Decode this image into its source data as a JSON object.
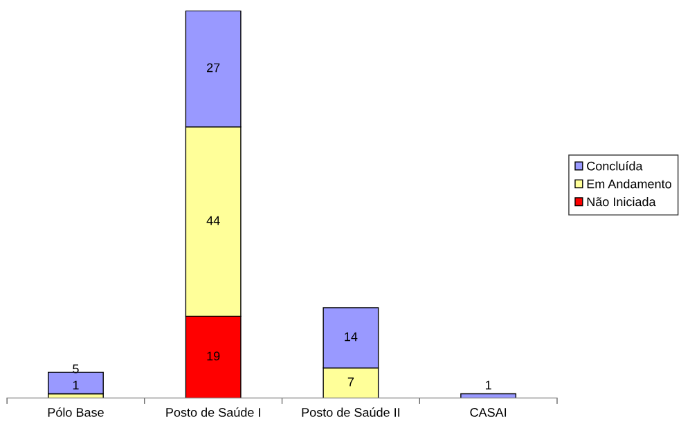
{
  "chart_data": {
    "type": "bar",
    "stacked": true,
    "categories": [
      "Pólo Base",
      "Posto de Saúde I",
      "Posto de Saúde II",
      "CASAI"
    ],
    "series": [
      {
        "name": "Não Iniciada",
        "color": "#ff0000",
        "values": [
          null,
          19,
          null,
          null
        ]
      },
      {
        "name": "Em Andamento",
        "color": "#ffff99",
        "values": [
          1,
          44,
          7,
          null
        ]
      },
      {
        "name": "Concluída",
        "color": "#9999ff",
        "values": [
          5,
          27,
          14,
          1
        ]
      }
    ],
    "ylim": [
      0,
      90
    ],
    "tick_labels": "x",
    "data_labels": true,
    "grid": false,
    "legend": "right"
  }
}
